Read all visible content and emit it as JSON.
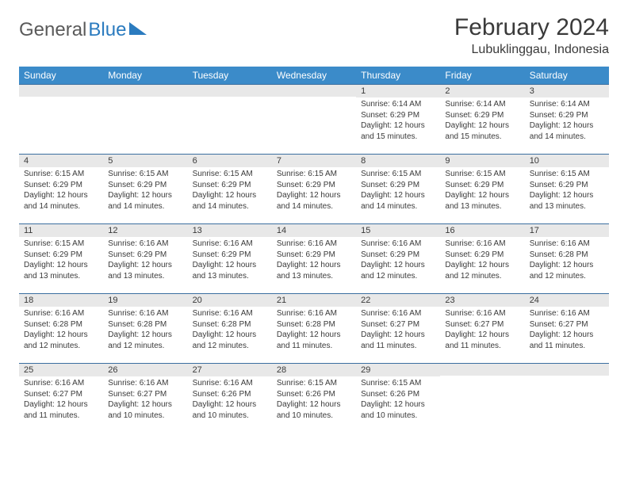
{
  "brand": {
    "part1": "General",
    "part2": "Blue"
  },
  "title": "February 2024",
  "location": "Lubuklinggau, Indonesia",
  "colors": {
    "header_bg": "#3b8bc9",
    "header_text": "#ffffff",
    "band_bg": "#e8e8e8",
    "band_border": "#3b6fa0",
    "body_text": "#3a3a3a",
    "logo_gray": "#5a5a5a",
    "logo_blue": "#2b7bbf",
    "page_bg": "#ffffff"
  },
  "typography": {
    "title_fontsize": 30,
    "location_fontsize": 16,
    "logo_fontsize": 24,
    "header_fontsize": 12,
    "daynum_fontsize": 11,
    "body_fontsize": 10
  },
  "columns": [
    "Sunday",
    "Monday",
    "Tuesday",
    "Wednesday",
    "Thursday",
    "Friday",
    "Saturday"
  ],
  "weeks": [
    [
      {
        "n": "",
        "lines": []
      },
      {
        "n": "",
        "lines": []
      },
      {
        "n": "",
        "lines": []
      },
      {
        "n": "",
        "lines": []
      },
      {
        "n": "1",
        "lines": [
          "Sunrise: 6:14 AM",
          "Sunset: 6:29 PM",
          "Daylight: 12 hours",
          "and 15 minutes."
        ]
      },
      {
        "n": "2",
        "lines": [
          "Sunrise: 6:14 AM",
          "Sunset: 6:29 PM",
          "Daylight: 12 hours",
          "and 15 minutes."
        ]
      },
      {
        "n": "3",
        "lines": [
          "Sunrise: 6:14 AM",
          "Sunset: 6:29 PM",
          "Daylight: 12 hours",
          "and 14 minutes."
        ]
      }
    ],
    [
      {
        "n": "4",
        "lines": [
          "Sunrise: 6:15 AM",
          "Sunset: 6:29 PM",
          "Daylight: 12 hours",
          "and 14 minutes."
        ]
      },
      {
        "n": "5",
        "lines": [
          "Sunrise: 6:15 AM",
          "Sunset: 6:29 PM",
          "Daylight: 12 hours",
          "and 14 minutes."
        ]
      },
      {
        "n": "6",
        "lines": [
          "Sunrise: 6:15 AM",
          "Sunset: 6:29 PM",
          "Daylight: 12 hours",
          "and 14 minutes."
        ]
      },
      {
        "n": "7",
        "lines": [
          "Sunrise: 6:15 AM",
          "Sunset: 6:29 PM",
          "Daylight: 12 hours",
          "and 14 minutes."
        ]
      },
      {
        "n": "8",
        "lines": [
          "Sunrise: 6:15 AM",
          "Sunset: 6:29 PM",
          "Daylight: 12 hours",
          "and 14 minutes."
        ]
      },
      {
        "n": "9",
        "lines": [
          "Sunrise: 6:15 AM",
          "Sunset: 6:29 PM",
          "Daylight: 12 hours",
          "and 13 minutes."
        ]
      },
      {
        "n": "10",
        "lines": [
          "Sunrise: 6:15 AM",
          "Sunset: 6:29 PM",
          "Daylight: 12 hours",
          "and 13 minutes."
        ]
      }
    ],
    [
      {
        "n": "11",
        "lines": [
          "Sunrise: 6:15 AM",
          "Sunset: 6:29 PM",
          "Daylight: 12 hours",
          "and 13 minutes."
        ]
      },
      {
        "n": "12",
        "lines": [
          "Sunrise: 6:16 AM",
          "Sunset: 6:29 PM",
          "Daylight: 12 hours",
          "and 13 minutes."
        ]
      },
      {
        "n": "13",
        "lines": [
          "Sunrise: 6:16 AM",
          "Sunset: 6:29 PM",
          "Daylight: 12 hours",
          "and 13 minutes."
        ]
      },
      {
        "n": "14",
        "lines": [
          "Sunrise: 6:16 AM",
          "Sunset: 6:29 PM",
          "Daylight: 12 hours",
          "and 13 minutes."
        ]
      },
      {
        "n": "15",
        "lines": [
          "Sunrise: 6:16 AM",
          "Sunset: 6:29 PM",
          "Daylight: 12 hours",
          "and 12 minutes."
        ]
      },
      {
        "n": "16",
        "lines": [
          "Sunrise: 6:16 AM",
          "Sunset: 6:29 PM",
          "Daylight: 12 hours",
          "and 12 minutes."
        ]
      },
      {
        "n": "17",
        "lines": [
          "Sunrise: 6:16 AM",
          "Sunset: 6:28 PM",
          "Daylight: 12 hours",
          "and 12 minutes."
        ]
      }
    ],
    [
      {
        "n": "18",
        "lines": [
          "Sunrise: 6:16 AM",
          "Sunset: 6:28 PM",
          "Daylight: 12 hours",
          "and 12 minutes."
        ]
      },
      {
        "n": "19",
        "lines": [
          "Sunrise: 6:16 AM",
          "Sunset: 6:28 PM",
          "Daylight: 12 hours",
          "and 12 minutes."
        ]
      },
      {
        "n": "20",
        "lines": [
          "Sunrise: 6:16 AM",
          "Sunset: 6:28 PM",
          "Daylight: 12 hours",
          "and 12 minutes."
        ]
      },
      {
        "n": "21",
        "lines": [
          "Sunrise: 6:16 AM",
          "Sunset: 6:28 PM",
          "Daylight: 12 hours",
          "and 11 minutes."
        ]
      },
      {
        "n": "22",
        "lines": [
          "Sunrise: 6:16 AM",
          "Sunset: 6:27 PM",
          "Daylight: 12 hours",
          "and 11 minutes."
        ]
      },
      {
        "n": "23",
        "lines": [
          "Sunrise: 6:16 AM",
          "Sunset: 6:27 PM",
          "Daylight: 12 hours",
          "and 11 minutes."
        ]
      },
      {
        "n": "24",
        "lines": [
          "Sunrise: 6:16 AM",
          "Sunset: 6:27 PM",
          "Daylight: 12 hours",
          "and 11 minutes."
        ]
      }
    ],
    [
      {
        "n": "25",
        "lines": [
          "Sunrise: 6:16 AM",
          "Sunset: 6:27 PM",
          "Daylight: 12 hours",
          "and 11 minutes."
        ]
      },
      {
        "n": "26",
        "lines": [
          "Sunrise: 6:16 AM",
          "Sunset: 6:27 PM",
          "Daylight: 12 hours",
          "and 10 minutes."
        ]
      },
      {
        "n": "27",
        "lines": [
          "Sunrise: 6:16 AM",
          "Sunset: 6:26 PM",
          "Daylight: 12 hours",
          "and 10 minutes."
        ]
      },
      {
        "n": "28",
        "lines": [
          "Sunrise: 6:15 AM",
          "Sunset: 6:26 PM",
          "Daylight: 12 hours",
          "and 10 minutes."
        ]
      },
      {
        "n": "29",
        "lines": [
          "Sunrise: 6:15 AM",
          "Sunset: 6:26 PM",
          "Daylight: 12 hours",
          "and 10 minutes."
        ]
      },
      {
        "n": "",
        "lines": []
      },
      {
        "n": "",
        "lines": []
      }
    ]
  ]
}
